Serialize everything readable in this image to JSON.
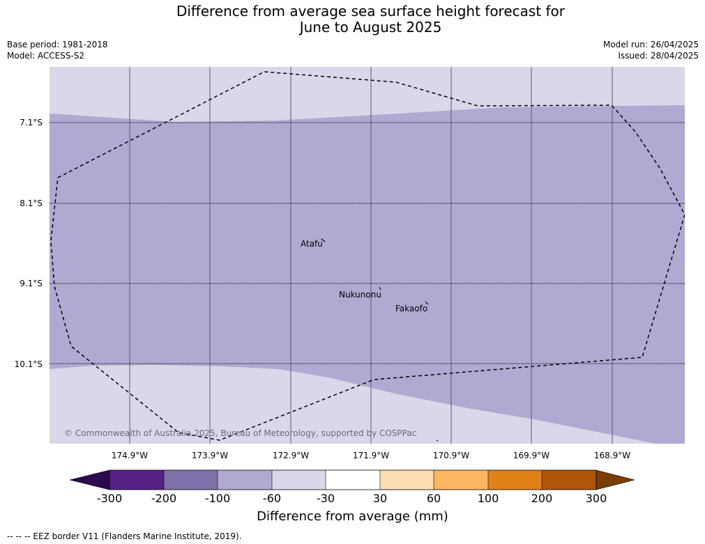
{
  "title_line1": "Difference from average sea surface height forecast for",
  "title_line2": "June to August 2025",
  "meta_left": [
    "Base period: 1981-2018",
    "Model: ACCESS-S2"
  ],
  "meta_right": [
    "Model run: 26/04/2025",
    "Issued: 28/04/2025"
  ],
  "latitudes": [
    "7.1°S",
    "8.1°S",
    "9.1°S",
    "10.1°S"
  ],
  "longitudes": [
    "174.9°W",
    "173.9°W",
    "172.9°W",
    "171.9°W",
    "170.9°W",
    "169.9°W",
    "168.9°W"
  ],
  "places": [
    "Atafu",
    "Nukunonu",
    "Fakaofo"
  ],
  "copyright": "© Commonwealth of Australia 2025, Bureau of Meteorology, supported by COSPPac",
  "colorbar": {
    "ticks": [
      "-300",
      "-200",
      "-100",
      "-60",
      "-30",
      "30",
      "60",
      "100",
      "200",
      "300"
    ],
    "colors": [
      "#2d0a4e",
      "#562085",
      "#8070aa",
      "#b0a9d1",
      "#d8d8ea",
      "#ffffff",
      "#fddeb2",
      "#fcb661",
      "#e08217",
      "#b05507",
      "#7a3e02"
    ],
    "title": "Difference from average (mm)"
  },
  "map_colors": {
    "band_-100_-60": "#b0a9d1",
    "band_-60_-30": "#d8d8ea"
  },
  "footer": "--  --  -- EEZ border V11 (Flanders Marine Institute, 2019)."
}
